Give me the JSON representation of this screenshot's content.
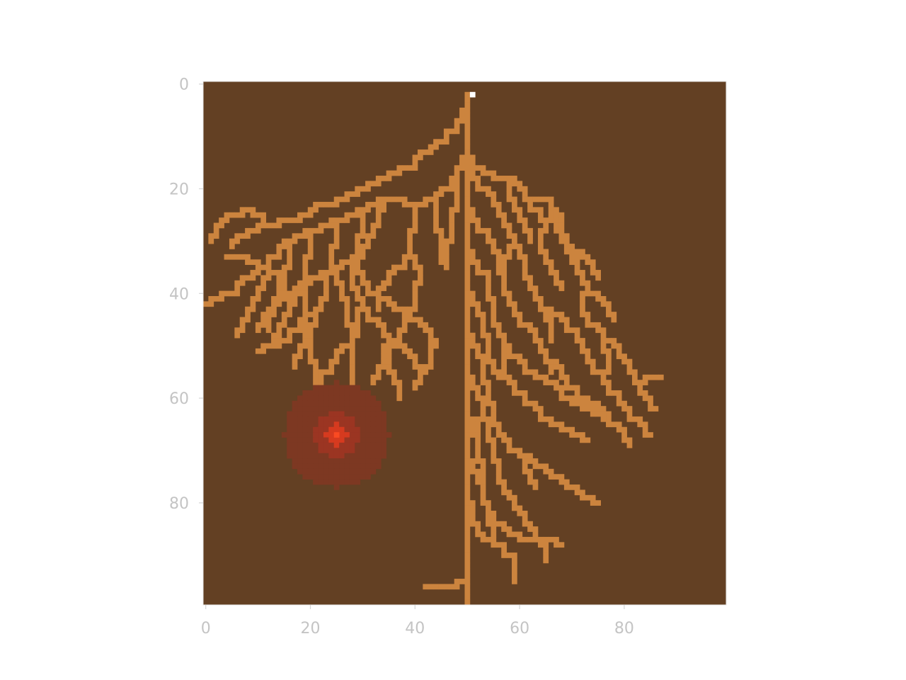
{
  "chart_data": {
    "type": "heatmap",
    "title": "",
    "xlabel": "",
    "ylabel": "",
    "grid_size": [
      100,
      100
    ],
    "xlim": [
      -0.5,
      99.5
    ],
    "ylim": [
      99.5,
      -0.5
    ],
    "x_ticks": [
      0,
      20,
      40,
      60,
      80
    ],
    "y_ticks": [
      0,
      20,
      40,
      60,
      80
    ],
    "x_tick_labels": [
      "0",
      "20",
      "40",
      "60",
      "80"
    ],
    "y_tick_labels": [
      "0",
      "20",
      "40",
      "60",
      "80"
    ],
    "legend": "none",
    "grid": false,
    "cell_values": {
      "soil": 0,
      "root": 1,
      "start": 2,
      "resource_outer": 3,
      "resource_mid": 4,
      "resource_core": 5
    },
    "colors": {
      "soil": "#634023",
      "root": "#cc843e",
      "start_marker": "#ffffff",
      "resource_outer": "#7d3822",
      "resource_mid": "#9b3522",
      "resource_core": "#d63a1f",
      "resource_peak": "#fa4a22"
    },
    "start_cell": [
      51,
      2
    ],
    "resource_patch": {
      "center": [
        25,
        67
      ],
      "radius": 10
    },
    "main_root": {
      "x": 50,
      "y_start": 2,
      "y_end": 99
    },
    "roots": [
      [
        [
          50,
          2
        ],
        [
          50,
          14
        ],
        [
          48,
          18
        ],
        [
          44,
          22
        ],
        [
          40,
          23
        ],
        [
          35,
          22
        ],
        [
          31,
          24
        ],
        [
          26,
          26
        ],
        [
          21,
          28
        ],
        [
          17,
          30
        ],
        [
          13,
          33
        ],
        [
          9,
          37
        ],
        [
          5,
          40
        ],
        [
          0,
          42
        ]
      ],
      [
        [
          50,
          5
        ],
        [
          47,
          9
        ],
        [
          43,
          13
        ],
        [
          39,
          16
        ],
        [
          35,
          18
        ],
        [
          31,
          20
        ],
        [
          27,
          22
        ],
        [
          23,
          23
        ],
        [
          20,
          25
        ],
        [
          16,
          26
        ],
        [
          12,
          27
        ],
        [
          8,
          29
        ],
        [
          5,
          31
        ]
      ],
      [
        [
          40,
          23
        ],
        [
          40,
          28
        ],
        [
          39,
          33
        ],
        [
          41,
          38
        ],
        [
          40,
          43
        ],
        [
          38,
          47
        ],
        [
          36,
          50
        ],
        [
          35,
          55
        ],
        [
          37,
          60
        ]
      ],
      [
        [
          35,
          22
        ],
        [
          33,
          27
        ],
        [
          31,
          31
        ],
        [
          28,
          34
        ],
        [
          24,
          36
        ],
        [
          20,
          38
        ],
        [
          16,
          41
        ],
        [
          12,
          44
        ],
        [
          10,
          47
        ]
      ],
      [
        [
          31,
          24
        ],
        [
          30,
          29
        ],
        [
          29,
          34
        ],
        [
          28,
          39
        ],
        [
          30,
          43
        ],
        [
          29,
          48
        ],
        [
          26,
          51
        ],
        [
          24,
          55
        ],
        [
          21,
          57
        ]
      ],
      [
        [
          26,
          26
        ],
        [
          25,
          31
        ],
        [
          24,
          36
        ],
        [
          23,
          41
        ],
        [
          21,
          46
        ],
        [
          19,
          50
        ],
        [
          17,
          54
        ]
      ],
      [
        [
          21,
          28
        ],
        [
          20,
          33
        ],
        [
          19,
          38
        ],
        [
          17,
          42
        ],
        [
          15,
          46
        ],
        [
          13,
          50
        ],
        [
          10,
          51
        ]
      ],
      [
        [
          17,
          30
        ],
        [
          16,
          35
        ],
        [
          15,
          39
        ],
        [
          13,
          43
        ],
        [
          12,
          47
        ]
      ],
      [
        [
          13,
          33
        ],
        [
          12,
          37
        ],
        [
          10,
          41
        ],
        [
          8,
          45
        ],
        [
          6,
          48
        ]
      ],
      [
        [
          24,
          36
        ],
        [
          26,
          41
        ],
        [
          27,
          46
        ],
        [
          28,
          51
        ],
        [
          28,
          56
        ],
        [
          28,
          61
        ],
        [
          27,
          65
        ]
      ],
      [
        [
          20,
          38
        ],
        [
          19,
          43
        ],
        [
          19,
          48
        ],
        [
          20,
          53
        ],
        [
          22,
          58
        ],
        [
          24,
          61
        ]
      ],
      [
        [
          30,
          43
        ],
        [
          33,
          46
        ],
        [
          35,
          50
        ],
        [
          34,
          54
        ],
        [
          32,
          57
        ]
      ],
      [
        [
          36,
          50
        ],
        [
          39,
          52
        ],
        [
          42,
          55
        ],
        [
          40,
          58
        ]
      ],
      [
        [
          39,
          33
        ],
        [
          36,
          36
        ],
        [
          34,
          39
        ],
        [
          33,
          43
        ]
      ],
      [
        [
          48,
          18
        ],
        [
          48,
          24
        ],
        [
          47,
          30
        ],
        [
          46,
          35
        ]
      ],
      [
        [
          44,
          22
        ],
        [
          44,
          28
        ],
        [
          45,
          34
        ]
      ],
      [
        [
          28,
          34
        ],
        [
          30,
          38
        ],
        [
          33,
          41
        ],
        [
          36,
          43
        ],
        [
          39,
          45
        ],
        [
          42,
          47
        ],
        [
          44,
          50
        ],
        [
          43,
          54
        ]
      ],
      [
        [
          23,
          41
        ],
        [
          21,
          44
        ],
        [
          17,
          47
        ],
        [
          14,
          50
        ]
      ],
      [
        [
          17,
          42
        ],
        [
          15,
          38
        ],
        [
          12,
          35
        ],
        [
          8,
          33
        ],
        [
          4,
          33
        ]
      ],
      [
        [
          22,
          58
        ],
        [
          20,
          61
        ]
      ],
      [
        [
          12,
          27
        ],
        [
          9,
          24
        ],
        [
          6,
          25
        ],
        [
          3,
          27
        ],
        [
          1,
          30
        ]
      ],
      [
        [
          50,
          14
        ],
        [
          53,
          17
        ],
        [
          57,
          18
        ],
        [
          60,
          20
        ],
        [
          62,
          22
        ],
        [
          65,
          22
        ],
        [
          67,
          25
        ],
        [
          68,
          29
        ],
        [
          70,
          32
        ],
        [
          71,
          36
        ],
        [
          73,
          40
        ],
        [
          72,
          44
        ],
        [
          75,
          47
        ],
        [
          78,
          50
        ],
        [
          80,
          53
        ],
        [
          82,
          57
        ],
        [
          84,
          60
        ],
        [
          86,
          62
        ]
      ],
      [
        [
          50,
          16
        ],
        [
          54,
          21
        ],
        [
          56,
          25
        ],
        [
          58,
          29
        ],
        [
          60,
          33
        ],
        [
          61,
          37
        ],
        [
          63,
          41
        ],
        [
          66,
          44
        ],
        [
          70,
          47
        ],
        [
          72,
          51
        ],
        [
          75,
          55
        ],
        [
          78,
          59
        ],
        [
          80,
          62
        ],
        [
          83,
          65
        ],
        [
          85,
          67
        ]
      ],
      [
        [
          50,
          24
        ],
        [
          53,
          28
        ],
        [
          55,
          32
        ],
        [
          56,
          36
        ],
        [
          57,
          40
        ],
        [
          59,
          44
        ],
        [
          62,
          47
        ],
        [
          64,
          51
        ],
        [
          67,
          54
        ],
        [
          70,
          58
        ],
        [
          73,
          61
        ],
        [
          76,
          63
        ],
        [
          79,
          66
        ],
        [
          81,
          69
        ]
      ],
      [
        [
          50,
          32
        ],
        [
          53,
          36
        ],
        [
          54,
          41
        ],
        [
          55,
          46
        ],
        [
          57,
          50
        ],
        [
          60,
          53
        ],
        [
          63,
          56
        ],
        [
          67,
          58
        ],
        [
          70,
          61
        ],
        [
          74,
          63
        ],
        [
          77,
          65
        ]
      ],
      [
        [
          50,
          40
        ],
        [
          52,
          44
        ],
        [
          53,
          48
        ],
        [
          54,
          53
        ],
        [
          56,
          56
        ],
        [
          60,
          59
        ],
        [
          63,
          62
        ],
        [
          66,
          65
        ],
        [
          70,
          67
        ],
        [
          73,
          68
        ]
      ],
      [
        [
          50,
          48
        ],
        [
          52,
          52
        ],
        [
          53,
          57
        ],
        [
          54,
          61
        ],
        [
          55,
          65
        ],
        [
          57,
          68
        ],
        [
          60,
          71
        ],
        [
          63,
          73
        ],
        [
          66,
          75
        ],
        [
          69,
          77
        ],
        [
          72,
          79
        ],
        [
          75,
          80
        ]
      ],
      [
        [
          50,
          56
        ],
        [
          52,
          60
        ],
        [
          53,
          64
        ],
        [
          54,
          68
        ],
        [
          55,
          72
        ],
        [
          56,
          76
        ],
        [
          58,
          79
        ],
        [
          60,
          82
        ],
        [
          62,
          85
        ],
        [
          64,
          88
        ],
        [
          65,
          91
        ]
      ],
      [
        [
          50,
          64
        ],
        [
          52,
          68
        ],
        [
          52,
          72
        ],
        [
          53,
          76
        ],
        [
          53,
          80
        ],
        [
          54,
          84
        ],
        [
          55,
          88
        ]
      ],
      [
        [
          50,
          72
        ],
        [
          52,
          76
        ],
        [
          53,
          80
        ],
        [
          55,
          84
        ],
        [
          58,
          86
        ],
        [
          62,
          87
        ],
        [
          65,
          87
        ],
        [
          68,
          88
        ]
      ],
      [
        [
          50,
          80
        ],
        [
          51,
          84
        ],
        [
          53,
          87
        ],
        [
          56,
          88
        ],
        [
          58,
          90
        ],
        [
          59,
          95
        ]
      ],
      [
        [
          50,
          95
        ],
        [
          48,
          96
        ],
        [
          42,
          96
        ]
      ],
      [
        [
          60,
          20
        ],
        [
          63,
          24
        ],
        [
          65,
          28
        ],
        [
          64,
          32
        ],
        [
          66,
          36
        ],
        [
          68,
          39
        ]
      ],
      [
        [
          57,
          18
        ],
        [
          58,
          22
        ],
        [
          60,
          26
        ],
        [
          62,
          30
        ]
      ],
      [
        [
          65,
          22
        ],
        [
          66,
          26
        ],
        [
          68,
          30
        ],
        [
          70,
          34
        ]
      ],
      [
        [
          73,
          40
        ],
        [
          76,
          42
        ],
        [
          78,
          45
        ]
      ],
      [
        [
          75,
          47
        ],
        [
          76,
          51
        ],
        [
          77,
          55
        ]
      ],
      [
        [
          82,
          57
        ],
        [
          85,
          56
        ],
        [
          87,
          56
        ]
      ],
      [
        [
          57,
          50
        ],
        [
          57,
          55
        ]
      ],
      [
        [
          63,
          41
        ],
        [
          65,
          45
        ],
        [
          66,
          49
        ]
      ],
      [
        [
          70,
          32
        ],
        [
          73,
          34
        ],
        [
          75,
          37
        ]
      ],
      [
        [
          64,
          51
        ],
        [
          66,
          55
        ]
      ],
      [
        [
          56,
          36
        ],
        [
          57,
          33
        ],
        [
          59,
          31
        ]
      ],
      [
        [
          53,
          64
        ],
        [
          51,
          67
        ]
      ],
      [
        [
          60,
          71
        ],
        [
          61,
          74
        ],
        [
          63,
          77
        ]
      ]
    ]
  }
}
